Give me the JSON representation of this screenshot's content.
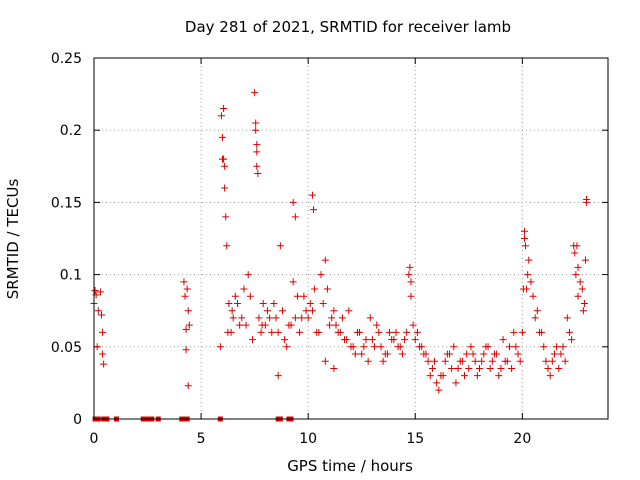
{
  "chart_data": {
    "type": "scatter",
    "title": "Day 281 of 2021, SRMTID for receiver lamb",
    "xlabel": "GPS time / hours",
    "ylabel": "SRMTID / TECUs",
    "xlim": [
      0,
      24
    ],
    "ylim": [
      0,
      0.25
    ],
    "xticks": [
      0,
      5,
      10,
      15,
      20
    ],
    "xtick_labels": [
      "0",
      "5",
      "10",
      "15",
      "20"
    ],
    "yticks": [
      0,
      0.05,
      0.1,
      0.15,
      0.2,
      0.25
    ],
    "ytick_labels": [
      "0",
      "0.05",
      "0.1",
      "0.15",
      "0.2",
      "0.25"
    ],
    "grid": true,
    "marker": "+",
    "color": "#dd0000",
    "series": [
      {
        "name": "SRMTID",
        "x": [
          0.0,
          0.05,
          0.1,
          0.15,
          0.2,
          0.3,
          0.35,
          0.4,
          0.4,
          0.45,
          4.2,
          4.25,
          4.3,
          4.3,
          4.35,
          4.4,
          4.4,
          4.45,
          5.9,
          5.95,
          6.0,
          6.05,
          6.1,
          6.15,
          6.2,
          6.3,
          6.4,
          6.5,
          6.6,
          6.8,
          7.0,
          7.2,
          7.4,
          7.5,
          7.55,
          7.6,
          7.7,
          7.8,
          7.9,
          8.0,
          8.2,
          8.4,
          8.6,
          8.8,
          9.0,
          9.2,
          9.3,
          9.5,
          9.7,
          9.9,
          10.1,
          10.3,
          10.5,
          10.6,
          10.8,
          11.0,
          11.2,
          11.4,
          11.6,
          11.8,
          12.0,
          12.2,
          12.4,
          12.6,
          12.8,
          13.0,
          13.2,
          13.4,
          13.6,
          13.8,
          14.0,
          14.2,
          14.4,
          14.6,
          14.7,
          14.8,
          15.0,
          15.2,
          15.4,
          15.6,
          15.8,
          16.0,
          16.2,
          16.4,
          16.6,
          16.8,
          17.0,
          17.2,
          17.4,
          17.6,
          17.8,
          18.0,
          18.2,
          18.4,
          18.6,
          18.8,
          19.0,
          19.2,
          19.4,
          19.6,
          19.8,
          20.0,
          20.1,
          20.2,
          20.3,
          20.4,
          20.6,
          20.8,
          21.0,
          21.2,
          21.4,
          21.6,
          21.8,
          22.0,
          22.2,
          22.4,
          22.5,
          22.6,
          22.8,
          22.9,
          23.0,
          6.25,
          6.45,
          6.7,
          6.9,
          7.1,
          7.3,
          7.65,
          7.85,
          8.1,
          8.3,
          8.5,
          8.7,
          8.9,
          9.1,
          9.4,
          9.6,
          9.8,
          10.0,
          10.2,
          10.4,
          10.7,
          10.9,
          11.1,
          11.3,
          11.5,
          11.7,
          11.9,
          12.1,
          12.3,
          12.5,
          12.7,
          12.9,
          13.1,
          13.3,
          13.5,
          13.7,
          13.9,
          14.1,
          14.3,
          14.5,
          14.9,
          15.1,
          15.3,
          15.5,
          15.7,
          15.9,
          16.1,
          16.3,
          16.5,
          16.7,
          16.9,
          17.1,
          17.3,
          17.5,
          17.7,
          17.9,
          18.1,
          18.3,
          18.5,
          18.7,
          18.9,
          19.1,
          19.3,
          19.5,
          19.7,
          19.9,
          20.05,
          20.25,
          20.5,
          20.7,
          20.9,
          21.1,
          21.3,
          21.5,
          21.7,
          21.9,
          22.1,
          22.3,
          22.45,
          22.7,
          22.85,
          22.95,
          6.05,
          6.0,
          6.1,
          7.55,
          7.6,
          7.6,
          10.2,
          10.25,
          9.4,
          9.3,
          14.75,
          14.8,
          20.1,
          20.15,
          22.55,
          22.6,
          23.0,
          10.8,
          11.2,
          8.6
        ],
        "y": [
          0.08,
          0.089,
          0.086,
          0.05,
          0.075,
          0.088,
          0.072,
          0.06,
          0.045,
          0.038,
          0.095,
          0.085,
          0.062,
          0.048,
          0.09,
          0.023,
          0.075,
          0.065,
          0.05,
          0.21,
          0.195,
          0.18,
          0.16,
          0.14,
          0.12,
          0.08,
          0.06,
          0.07,
          0.085,
          0.065,
          0.09,
          0.1,
          0.055,
          0.226,
          0.2,
          0.185,
          0.07,
          0.06,
          0.08,
          0.065,
          0.07,
          0.08,
          0.06,
          0.075,
          0.05,
          0.065,
          0.095,
          0.085,
          0.07,
          0.075,
          0.08,
          0.09,
          0.06,
          0.1,
          0.11,
          0.065,
          0.075,
          0.06,
          0.07,
          0.055,
          0.05,
          0.045,
          0.06,
          0.05,
          0.04,
          0.055,
          0.065,
          0.05,
          0.045,
          0.06,
          0.055,
          0.05,
          0.045,
          0.06,
          0.1,
          0.085,
          0.055,
          0.05,
          0.045,
          0.04,
          0.035,
          0.025,
          0.03,
          0.04,
          0.045,
          0.05,
          0.035,
          0.04,
          0.045,
          0.05,
          0.04,
          0.035,
          0.045,
          0.05,
          0.04,
          0.045,
          0.035,
          0.04,
          0.05,
          0.06,
          0.045,
          0.06,
          0.13,
          0.09,
          0.11,
          0.095,
          0.07,
          0.06,
          0.05,
          0.035,
          0.04,
          0.05,
          0.045,
          0.04,
          0.06,
          0.12,
          0.1,
          0.085,
          0.09,
          0.08,
          0.152,
          0.06,
          0.075,
          0.08,
          0.07,
          0.065,
          0.085,
          0.17,
          0.065,
          0.075,
          0.06,
          0.07,
          0.12,
          0.055,
          0.065,
          0.07,
          0.06,
          0.085,
          0.07,
          0.075,
          0.06,
          0.08,
          0.09,
          0.07,
          0.065,
          0.06,
          0.055,
          0.075,
          0.05,
          0.06,
          0.045,
          0.055,
          0.07,
          0.05,
          0.06,
          0.04,
          0.045,
          0.055,
          0.06,
          0.05,
          0.055,
          0.065,
          0.06,
          0.05,
          0.045,
          0.03,
          0.04,
          0.02,
          0.03,
          0.045,
          0.035,
          0.025,
          0.04,
          0.03,
          0.035,
          0.045,
          0.03,
          0.04,
          0.05,
          0.035,
          0.045,
          0.03,
          0.055,
          0.04,
          0.035,
          0.05,
          0.04,
          0.09,
          0.1,
          0.085,
          0.075,
          0.06,
          0.04,
          0.03,
          0.045,
          0.035,
          0.05,
          0.07,
          0.055,
          0.115,
          0.095,
          0.075,
          0.11,
          0.215,
          0.18,
          0.175,
          0.205,
          0.19,
          0.175,
          0.155,
          0.145,
          0.14,
          0.15,
          0.105,
          0.095,
          0.125,
          0.12,
          0.12,
          0.105,
          0.15,
          0.04,
          0.035,
          0.03
        ],
        "zero_x": [
          0.05,
          0.2,
          0.45,
          0.6,
          1.05,
          2.3,
          2.45,
          2.55,
          2.7,
          3.0,
          4.1,
          4.25,
          4.35,
          5.9,
          8.6,
          8.7,
          9.1,
          9.2
        ]
      }
    ]
  }
}
